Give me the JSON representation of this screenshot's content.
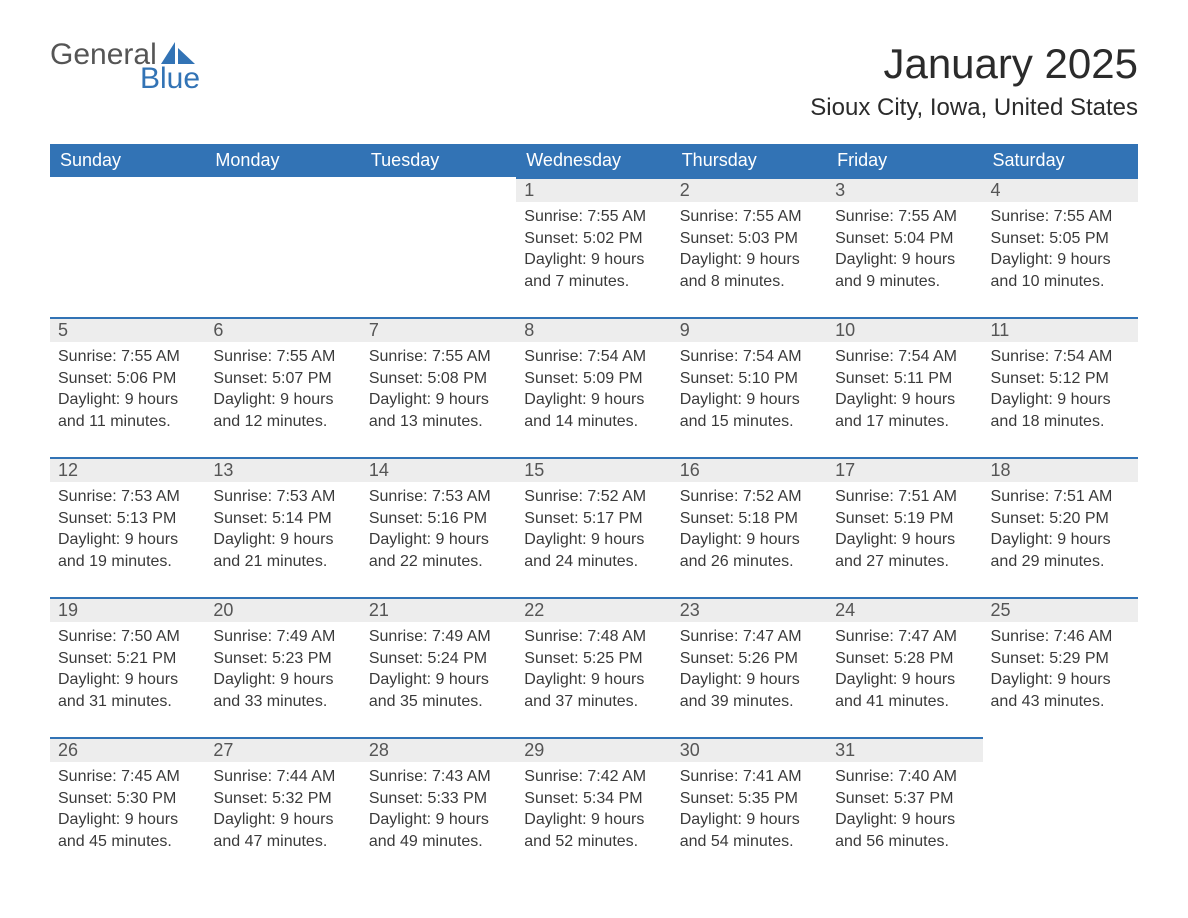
{
  "logo": {
    "word1": "General",
    "word2": "Blue"
  },
  "title": "January 2025",
  "location": "Sioux City, Iowa, United States",
  "colors": {
    "brand_blue": "#3273b5",
    "header_text": "#ffffff",
    "daybar_bg": "#ededed",
    "daybar_text": "#555555",
    "body_text": "#3a3a3a",
    "page_bg": "#ffffff"
  },
  "layout": {
    "columns": 7,
    "rows": 5,
    "first_day_column_index": 3
  },
  "weekdays": [
    "Sunday",
    "Monday",
    "Tuesday",
    "Wednesday",
    "Thursday",
    "Friday",
    "Saturday"
  ],
  "days": [
    {
      "n": 1,
      "sunrise": "7:55 AM",
      "sunset": "5:02 PM",
      "daylight": "9 hours and 7 minutes."
    },
    {
      "n": 2,
      "sunrise": "7:55 AM",
      "sunset": "5:03 PM",
      "daylight": "9 hours and 8 minutes."
    },
    {
      "n": 3,
      "sunrise": "7:55 AM",
      "sunset": "5:04 PM",
      "daylight": "9 hours and 9 minutes."
    },
    {
      "n": 4,
      "sunrise": "7:55 AM",
      "sunset": "5:05 PM",
      "daylight": "9 hours and 10 minutes."
    },
    {
      "n": 5,
      "sunrise": "7:55 AM",
      "sunset": "5:06 PM",
      "daylight": "9 hours and 11 minutes."
    },
    {
      "n": 6,
      "sunrise": "7:55 AM",
      "sunset": "5:07 PM",
      "daylight": "9 hours and 12 minutes."
    },
    {
      "n": 7,
      "sunrise": "7:55 AM",
      "sunset": "5:08 PM",
      "daylight": "9 hours and 13 minutes."
    },
    {
      "n": 8,
      "sunrise": "7:54 AM",
      "sunset": "5:09 PM",
      "daylight": "9 hours and 14 minutes."
    },
    {
      "n": 9,
      "sunrise": "7:54 AM",
      "sunset": "5:10 PM",
      "daylight": "9 hours and 15 minutes."
    },
    {
      "n": 10,
      "sunrise": "7:54 AM",
      "sunset": "5:11 PM",
      "daylight": "9 hours and 17 minutes."
    },
    {
      "n": 11,
      "sunrise": "7:54 AM",
      "sunset": "5:12 PM",
      "daylight": "9 hours and 18 minutes."
    },
    {
      "n": 12,
      "sunrise": "7:53 AM",
      "sunset": "5:13 PM",
      "daylight": "9 hours and 19 minutes."
    },
    {
      "n": 13,
      "sunrise": "7:53 AM",
      "sunset": "5:14 PM",
      "daylight": "9 hours and 21 minutes."
    },
    {
      "n": 14,
      "sunrise": "7:53 AM",
      "sunset": "5:16 PM",
      "daylight": "9 hours and 22 minutes."
    },
    {
      "n": 15,
      "sunrise": "7:52 AM",
      "sunset": "5:17 PM",
      "daylight": "9 hours and 24 minutes."
    },
    {
      "n": 16,
      "sunrise": "7:52 AM",
      "sunset": "5:18 PM",
      "daylight": "9 hours and 26 minutes."
    },
    {
      "n": 17,
      "sunrise": "7:51 AM",
      "sunset": "5:19 PM",
      "daylight": "9 hours and 27 minutes."
    },
    {
      "n": 18,
      "sunrise": "7:51 AM",
      "sunset": "5:20 PM",
      "daylight": "9 hours and 29 minutes."
    },
    {
      "n": 19,
      "sunrise": "7:50 AM",
      "sunset": "5:21 PM",
      "daylight": "9 hours and 31 minutes."
    },
    {
      "n": 20,
      "sunrise": "7:49 AM",
      "sunset": "5:23 PM",
      "daylight": "9 hours and 33 minutes."
    },
    {
      "n": 21,
      "sunrise": "7:49 AM",
      "sunset": "5:24 PM",
      "daylight": "9 hours and 35 minutes."
    },
    {
      "n": 22,
      "sunrise": "7:48 AM",
      "sunset": "5:25 PM",
      "daylight": "9 hours and 37 minutes."
    },
    {
      "n": 23,
      "sunrise": "7:47 AM",
      "sunset": "5:26 PM",
      "daylight": "9 hours and 39 minutes."
    },
    {
      "n": 24,
      "sunrise": "7:47 AM",
      "sunset": "5:28 PM",
      "daylight": "9 hours and 41 minutes."
    },
    {
      "n": 25,
      "sunrise": "7:46 AM",
      "sunset": "5:29 PM",
      "daylight": "9 hours and 43 minutes."
    },
    {
      "n": 26,
      "sunrise": "7:45 AM",
      "sunset": "5:30 PM",
      "daylight": "9 hours and 45 minutes."
    },
    {
      "n": 27,
      "sunrise": "7:44 AM",
      "sunset": "5:32 PM",
      "daylight": "9 hours and 47 minutes."
    },
    {
      "n": 28,
      "sunrise": "7:43 AM",
      "sunset": "5:33 PM",
      "daylight": "9 hours and 49 minutes."
    },
    {
      "n": 29,
      "sunrise": "7:42 AM",
      "sunset": "5:34 PM",
      "daylight": "9 hours and 52 minutes."
    },
    {
      "n": 30,
      "sunrise": "7:41 AM",
      "sunset": "5:35 PM",
      "daylight": "9 hours and 54 minutes."
    },
    {
      "n": 31,
      "sunrise": "7:40 AM",
      "sunset": "5:37 PM",
      "daylight": "9 hours and 56 minutes."
    }
  ],
  "labels": {
    "sunrise": "Sunrise: ",
    "sunset": "Sunset: ",
    "daylight": "Daylight: "
  }
}
